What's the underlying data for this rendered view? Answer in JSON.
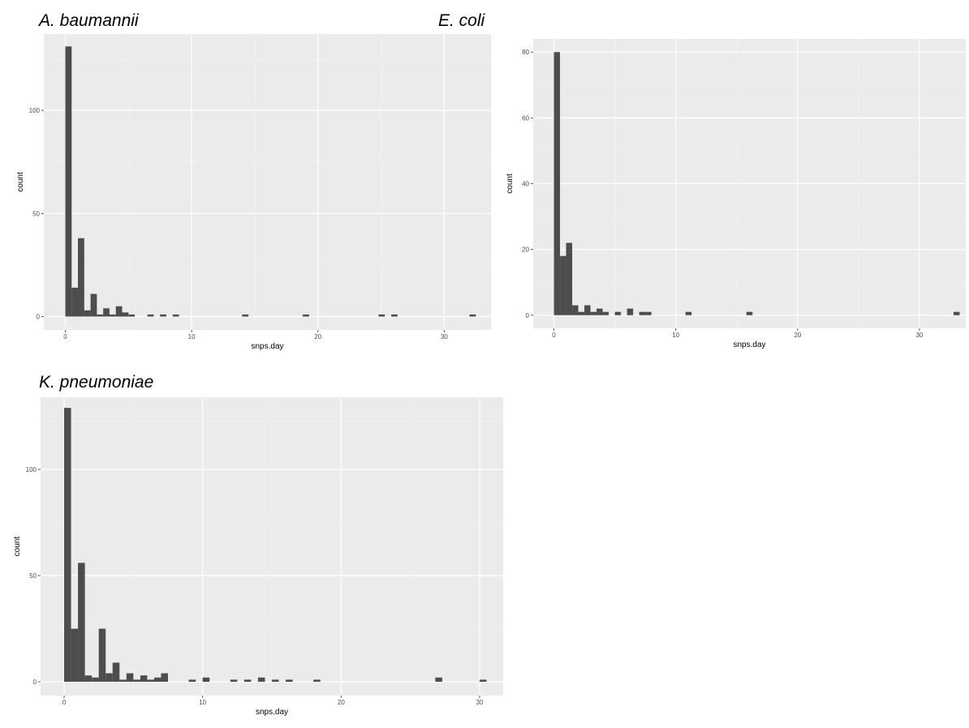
{
  "chart_data": [
    {
      "type": "bar",
      "title": "A. baumannii",
      "xlabel": "snps.day",
      "ylabel": "count",
      "xlim": [
        -1.7,
        33.7
      ],
      "ylim": [
        -6.5,
        137
      ],
      "xticks": [
        0,
        10,
        20,
        30
      ],
      "yticks": [
        0,
        50,
        100
      ],
      "grid": true,
      "bin_width": 0.5,
      "bins": [
        [
          0,
          131
        ],
        [
          0.5,
          14
        ],
        [
          1,
          38
        ],
        [
          1.5,
          3
        ],
        [
          2,
          11
        ],
        [
          2.5,
          1
        ],
        [
          3,
          4
        ],
        [
          3.5,
          1
        ],
        [
          4,
          5
        ],
        [
          4.5,
          2
        ],
        [
          5,
          1
        ],
        [
          6.5,
          1
        ],
        [
          7.5,
          1
        ],
        [
          8.5,
          1
        ],
        [
          14,
          1
        ],
        [
          18.8,
          1
        ],
        [
          24.8,
          1
        ],
        [
          25.8,
          1
        ],
        [
          32,
          1
        ]
      ]
    },
    {
      "type": "bar",
      "title": "E. coli",
      "xlabel": "snps.day",
      "ylabel": "count",
      "xlim": [
        -1.7,
        33.8
      ],
      "ylim": [
        -4,
        84
      ],
      "xticks": [
        0,
        10,
        20,
        30
      ],
      "yticks": [
        0,
        20,
        40,
        60,
        80
      ],
      "grid": true,
      "bin_width": 0.5,
      "bins": [
        [
          0,
          80
        ],
        [
          0.5,
          18
        ],
        [
          1,
          22
        ],
        [
          1.5,
          3
        ],
        [
          2,
          1
        ],
        [
          2.5,
          3
        ],
        [
          3,
          1
        ],
        [
          3.5,
          2
        ],
        [
          4,
          1
        ],
        [
          5,
          1
        ],
        [
          6,
          2
        ],
        [
          7,
          1
        ],
        [
          7.5,
          1
        ],
        [
          10.8,
          1
        ],
        [
          15.8,
          1
        ],
        [
          32.8,
          1
        ]
      ]
    },
    {
      "type": "bar",
      "title": "K. pneumoniae",
      "xlabel": "snps.day",
      "ylabel": "count",
      "xlim": [
        -1.7,
        31.7
      ],
      "ylim": [
        -6.5,
        134
      ],
      "xticks": [
        0,
        10,
        20,
        30
      ],
      "yticks": [
        0,
        50,
        100
      ],
      "grid": true,
      "bin_width": 0.5,
      "bins": [
        [
          0,
          129
        ],
        [
          0.5,
          25
        ],
        [
          1,
          56
        ],
        [
          1.5,
          3
        ],
        [
          2,
          2
        ],
        [
          2.5,
          25
        ],
        [
          3,
          4
        ],
        [
          3.5,
          9
        ],
        [
          4,
          1
        ],
        [
          4.5,
          4
        ],
        [
          5,
          1
        ],
        [
          5.5,
          3
        ],
        [
          6,
          1
        ],
        [
          6.5,
          2
        ],
        [
          7,
          4
        ],
        [
          9,
          1
        ],
        [
          10,
          2
        ],
        [
          12,
          1
        ],
        [
          13,
          1
        ],
        [
          14,
          2
        ],
        [
          15,
          1
        ],
        [
          16,
          1
        ],
        [
          18,
          1
        ],
        [
          26.8,
          2
        ],
        [
          30,
          1
        ]
      ]
    }
  ]
}
